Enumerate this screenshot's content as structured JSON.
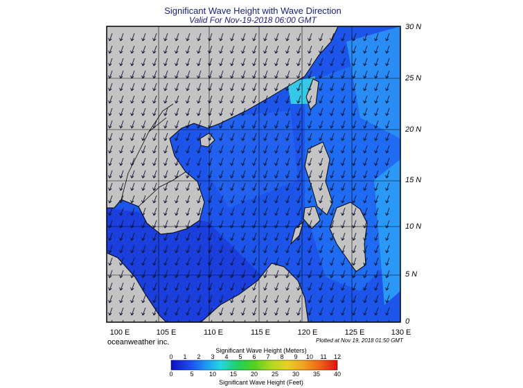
{
  "header": {
    "title": "Significant Wave Height with Wave Direction",
    "subtitle": "Valid For Nov-19-2018 06:00 GMT"
  },
  "map": {
    "lat_labels": [
      "30 N",
      "25 N",
      "20 N",
      "15 N",
      "10 N",
      "5 N",
      "0"
    ],
    "lon_labels": [
      "100 E",
      "105 E",
      "110 E",
      "115 E",
      "120 E",
      "125 E",
      "130 E"
    ],
    "colors": {
      "land": "#c4c4c4",
      "sea_low": "#1f3fe0",
      "sea_mid": "#1b6ef0",
      "sea_high": "#2ba0f5",
      "arrow": "#101830"
    }
  },
  "footer": {
    "credit": "oceanweather inc.",
    "plotted": "Plotted at Nov 19, 2018 01:50 GMT"
  },
  "colorbar": {
    "meters_title": "Significant Wave Height (Meters)",
    "feet_title": "Significant Wave Height (Feet)",
    "meters_ticks": [
      "0",
      "1",
      "2",
      "3",
      "4",
      "5",
      "6",
      "7",
      "8",
      "9",
      "10",
      "11",
      "12"
    ],
    "feet_ticks": [
      "0",
      "5",
      "10",
      "15",
      "20",
      "25",
      "30",
      "35",
      "40"
    ]
  }
}
